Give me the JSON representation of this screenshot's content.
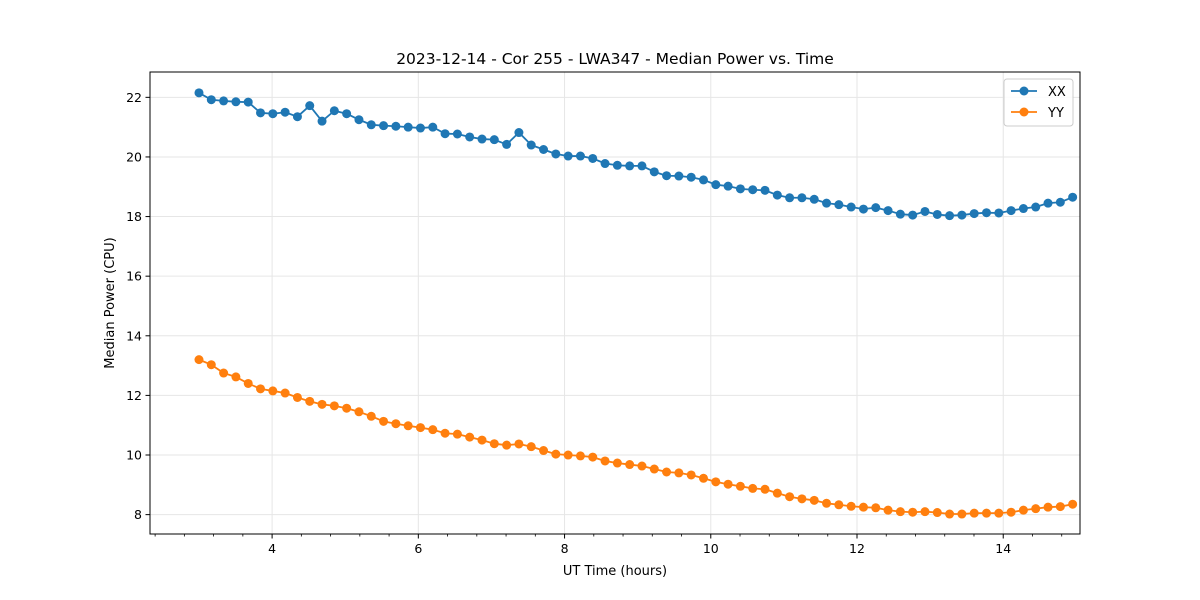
{
  "chart_data": {
    "type": "line",
    "title": "2023-12-14 - Cor 255 - LWA347 - Median Power vs. Time",
    "xlabel": "UT Time (hours)",
    "ylabel": "Median Power (CPU)",
    "xlim": [
      2.33,
      15.05
    ],
    "ylim": [
      7.35,
      22.85
    ],
    "xticks": [
      4,
      6,
      8,
      10,
      12,
      14
    ],
    "xtick_labels": [
      "4",
      "6",
      "8",
      "10",
      "12",
      "14"
    ],
    "yticks": [
      8,
      10,
      12,
      14,
      16,
      18,
      20,
      22
    ],
    "ytick_labels": [
      "8",
      "10",
      "12",
      "14",
      "16",
      "18",
      "20",
      "22"
    ],
    "x_minor_step": 0.4,
    "grid": true,
    "legend_position": "top-right",
    "x_start": 3.0,
    "x_step": 0.1683,
    "series": [
      {
        "name": "XX",
        "color": "#1f77b4",
        "values": [
          22.15,
          21.92,
          21.88,
          21.85,
          21.84,
          21.48,
          21.45,
          21.5,
          21.35,
          21.72,
          21.2,
          21.55,
          21.45,
          21.25,
          21.08,
          21.05,
          21.03,
          21.0,
          20.97,
          21.0,
          20.78,
          20.77,
          20.67,
          20.6,
          20.58,
          20.42,
          20.82,
          20.4,
          20.25,
          20.1,
          20.03,
          20.03,
          19.95,
          19.78,
          19.72,
          19.7,
          19.7,
          19.5,
          19.37,
          19.36,
          19.32,
          19.23,
          19.07,
          19.02,
          18.93,
          18.9,
          18.88,
          18.72,
          18.63,
          18.63,
          18.58,
          18.45,
          18.4,
          18.32,
          18.25,
          18.3,
          18.2,
          18.08,
          18.05,
          18.17,
          18.07,
          18.03,
          18.05,
          18.1,
          18.13,
          18.12,
          18.2,
          18.27,
          18.32,
          18.45,
          18.48,
          18.65
        ]
      },
      {
        "name": "YY",
        "color": "#ff7f0e",
        "values": [
          13.2,
          13.03,
          12.75,
          12.62,
          12.4,
          12.22,
          12.15,
          12.08,
          11.93,
          11.8,
          11.7,
          11.65,
          11.57,
          11.45,
          11.3,
          11.13,
          11.05,
          10.98,
          10.92,
          10.85,
          10.73,
          10.7,
          10.6,
          10.5,
          10.38,
          10.33,
          10.37,
          10.28,
          10.15,
          10.03,
          10.0,
          9.97,
          9.93,
          9.8,
          9.73,
          9.68,
          9.63,
          9.53,
          9.43,
          9.4,
          9.33,
          9.22,
          9.1,
          9.02,
          8.95,
          8.88,
          8.85,
          8.72,
          8.6,
          8.53,
          8.48,
          8.38,
          8.33,
          8.28,
          8.25,
          8.23,
          8.15,
          8.1,
          8.08,
          8.1,
          8.07,
          8.02,
          8.02,
          8.05,
          8.05,
          8.05,
          8.08,
          8.15,
          8.2,
          8.25,
          8.27,
          8.35
        ]
      }
    ]
  }
}
